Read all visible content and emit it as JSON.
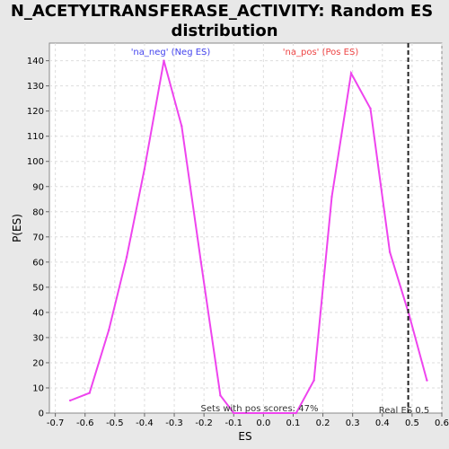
{
  "chart_data": {
    "type": "line",
    "title_line1": "N_ACETYLTRANSFERASE_ACTIVITY: Random ES",
    "title_line2": "distribution",
    "xlabel": "ES",
    "ylabel": "P(ES)",
    "xlim": [
      -0.72,
      0.6
    ],
    "ylim": [
      0,
      147
    ],
    "xticks": [
      "-0.7",
      "-0.6",
      "-0.5",
      "-0.4",
      "-0.3",
      "-0.2",
      "-0.1",
      "0.0",
      "0.1",
      "0.2",
      "0.3",
      "0.4",
      "0.5",
      "0.6"
    ],
    "xtick_values": [
      -0.7,
      -0.6,
      -0.5,
      -0.4,
      -0.3,
      -0.2,
      -0.1,
      0.0,
      0.1,
      0.2,
      0.3,
      0.4,
      0.5,
      0.6
    ],
    "yticks": [
      0,
      10,
      20,
      30,
      40,
      50,
      60,
      70,
      80,
      90,
      100,
      110,
      120,
      130,
      140
    ],
    "grid": true,
    "series": [
      {
        "name": "",
        "color": "#ee44ee",
        "x": [
          -0.65,
          -0.585,
          -0.52,
          -0.46,
          -0.4,
          -0.335,
          -0.275,
          -0.21,
          -0.145,
          -0.1,
          0.0,
          0.11,
          0.17,
          0.23,
          0.295,
          0.36,
          0.425,
          0.49,
          0.55
        ],
        "y": [
          5,
          8,
          33,
          62,
          97,
          140,
          114,
          60,
          7,
          0,
          0,
          0,
          13,
          86,
          135,
          121,
          64,
          39,
          13
        ]
      }
    ],
    "annotations": {
      "neg_label": "'na_neg' (Neg ES)",
      "neg_color": "#4444ee",
      "pos_label": "'na_pos' (Pos ES)",
      "pos_color": "#ee4444",
      "sets_text": "Sets with pos scores: 47%",
      "real_es_text": "Real ES 0.5",
      "real_es_value": 0.487
    }
  }
}
